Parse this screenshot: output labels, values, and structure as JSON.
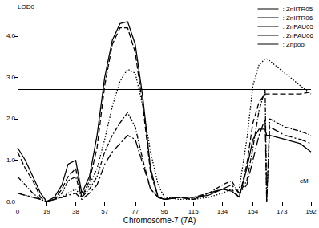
{
  "chart_data": {
    "type": "line",
    "title": "Chromosome-7 (7A)",
    "x_label": "cM",
    "y_label": "LOD0",
    "x": [
      0,
      5,
      10,
      15,
      19,
      24,
      29,
      33,
      38,
      42,
      47,
      52,
      57,
      62,
      67,
      72,
      77,
      82,
      87,
      92,
      96,
      106,
      115,
      125,
      134,
      140,
      145,
      150,
      154,
      158,
      162,
      163,
      165,
      175,
      185,
      192
    ],
    "series": [
      {
        "name": ": ZnIITR05",
        "color": "#000000",
        "line_style": "solid",
        "values": [
          1.3,
          1.0,
          0.6,
          0.2,
          0.0,
          0.1,
          0.4,
          0.9,
          1.0,
          0.2,
          0.6,
          1.6,
          3.0,
          3.9,
          4.3,
          4.35,
          3.8,
          2.5,
          0.8,
          0.1,
          0.05,
          0.1,
          0.1,
          0.15,
          0.3,
          0.25,
          0.1,
          0.8,
          1.5,
          1.75,
          1.75,
          1.6,
          1.6,
          1.5,
          1.4,
          1.2
        ]
      },
      {
        "name": ": ZnIITR06",
        "color": "#000000",
        "line_style": "dashed",
        "values": [
          1.2,
          0.8,
          0.5,
          0.1,
          0.0,
          0.05,
          0.3,
          0.6,
          0.8,
          0.1,
          0.5,
          1.3,
          2.8,
          3.8,
          4.2,
          4.2,
          3.6,
          2.3,
          0.7,
          0.1,
          0.05,
          0.1,
          0.1,
          0.2,
          0.3,
          0.3,
          0.1,
          0.9,
          1.9,
          2.4,
          2.6,
          2.6,
          2.6,
          2.6,
          2.6,
          2.65
        ]
      },
      {
        "name": ": ZnPAU05",
        "color": "#000000",
        "line_style": "dotted",
        "values": [
          0.2,
          0.15,
          0.1,
          0.05,
          0.0,
          0.05,
          0.1,
          0.2,
          0.3,
          0.1,
          0.4,
          0.8,
          1.5,
          2.3,
          2.9,
          3.2,
          3.1,
          2.3,
          1.2,
          0.4,
          0.1,
          0.05,
          0.05,
          0.1,
          0.2,
          0.3,
          0.3,
          1.5,
          2.8,
          3.3,
          3.45,
          3.45,
          3.4,
          3.1,
          2.8,
          2.6
        ]
      },
      {
        "name": ": ZnPAU06",
        "color": "#000000",
        "line_style": "dashdot",
        "values": [
          0.6,
          0.4,
          0.2,
          0.05,
          0.0,
          0.05,
          0.2,
          0.5,
          0.6,
          0.1,
          0.3,
          0.6,
          1.2,
          1.6,
          1.9,
          2.15,
          1.8,
          1.0,
          0.3,
          0.1,
          0.05,
          0.1,
          0.05,
          0.2,
          0.4,
          0.5,
          0.2,
          0.5,
          1.3,
          2.2,
          2.7,
          0.0,
          2.0,
          1.8,
          1.7,
          1.6
        ]
      },
      {
        "name": ": Znpool",
        "color": "#000000",
        "line_style": "longdashdot",
        "values": [
          0.2,
          0.15,
          0.1,
          0.05,
          0.0,
          0.05,
          0.1,
          0.15,
          0.2,
          0.05,
          0.2,
          0.4,
          0.9,
          1.2,
          1.4,
          1.6,
          1.5,
          0.9,
          0.3,
          0.1,
          0.05,
          0.1,
          0.05,
          0.2,
          0.3,
          0.4,
          0.2,
          0.4,
          1.0,
          1.6,
          2.0,
          0.0,
          1.8,
          1.6,
          1.5,
          1.4
        ]
      }
    ],
    "thresholds": [
      {
        "value": 2.72,
        "line_style": "solid"
      },
      {
        "value": 2.65,
        "line_style": "dashed"
      }
    ],
    "xlim": [
      0,
      192
    ],
    "xticks": [
      0,
      19,
      38,
      57,
      77,
      96,
      115,
      134,
      154,
      173,
      192
    ],
    "ylim": [
      0,
      4.6
    ],
    "yticks": [
      {
        "value": 0,
        "label": "0.0"
      },
      {
        "value": 1,
        "label": "1.0"
      },
      {
        "value": 2,
        "label": "2.0"
      },
      {
        "value": 3,
        "label": "3.0"
      },
      {
        "value": 4,
        "label": "4.0"
      }
    ],
    "grid": false,
    "legend": "top-right"
  }
}
